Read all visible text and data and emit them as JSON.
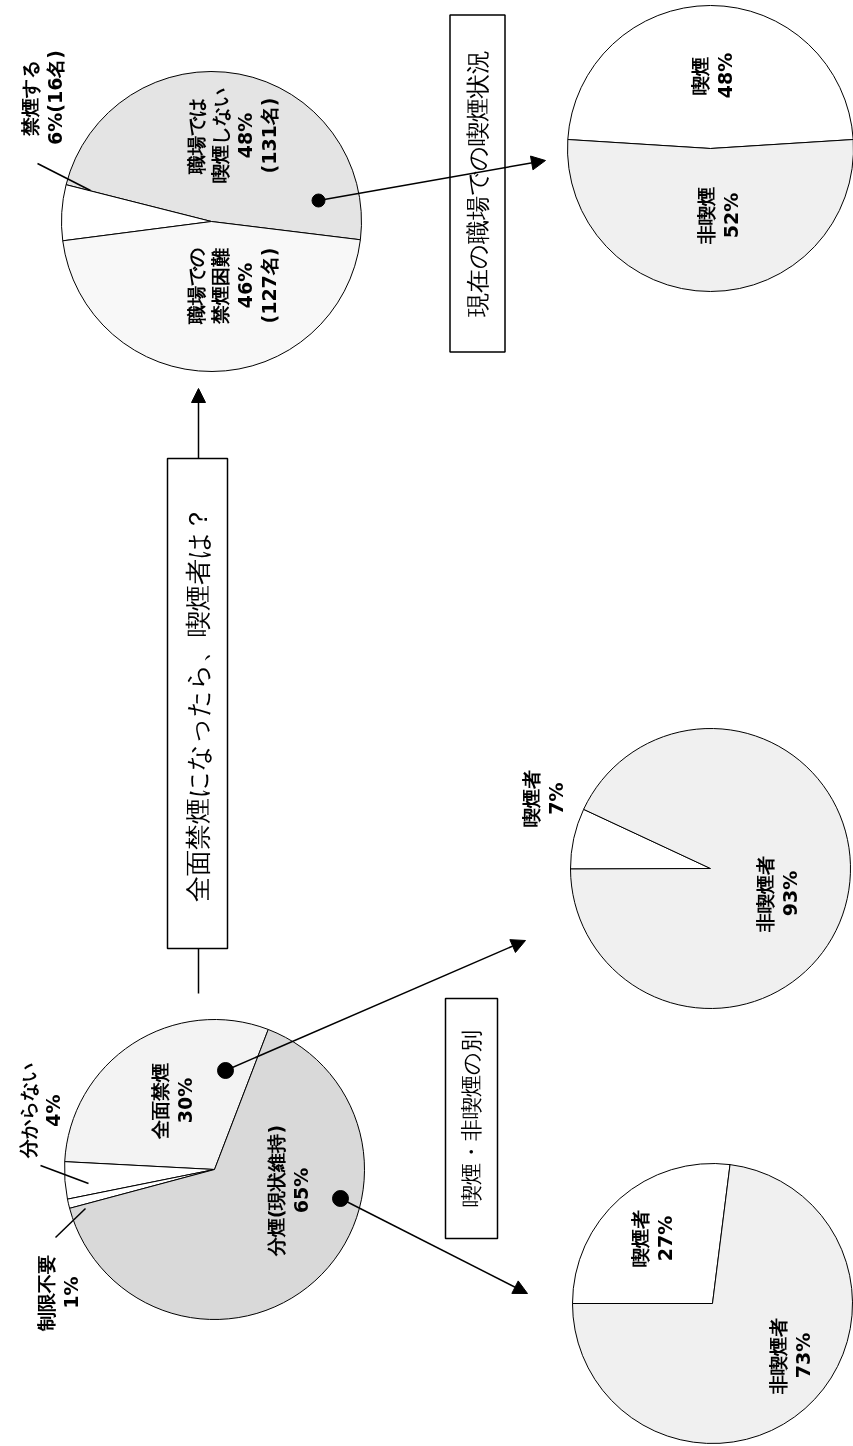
{
  "chart_data": [
    {
      "type": "pie",
      "categories": [
        "全面禁煙",
        "分からない",
        "制限不要",
        "分煙(現状維持)"
      ],
      "values": [
        30,
        4,
        1,
        65
      ],
      "value_labels": [
        "30%",
        "4%",
        "1%",
        "65%"
      ],
      "colors": [
        "#f3f3f3",
        "#ffffff",
        "#ffffff",
        "#d9d9d9"
      ]
    },
    {
      "type": "pie",
      "title": "喫煙・非喫煙の別",
      "categories": [
        "喫煙者",
        "非喫煙者"
      ],
      "values": [
        7,
        93
      ],
      "value_labels": [
        "7%",
        "93%"
      ],
      "colors": [
        "#ffffff",
        "#f0f0f0"
      ]
    },
    {
      "type": "pie",
      "categories": [
        "喫煙者",
        "非喫煙者"
      ],
      "values": [
        27,
        73
      ],
      "value_labels": [
        "27%",
        "73%"
      ],
      "colors": [
        "#ffffff",
        "#f0f0f0"
      ]
    },
    {
      "type": "pie",
      "title": "全面禁煙になったら、喫煙者は？",
      "categories": [
        "職場では喫煙しない",
        "禁煙する",
        "職場での禁煙困難"
      ],
      "values": [
        48,
        6,
        46
      ],
      "value_labels": [
        "48%\n(131名)",
        "6%(16名)",
        "46%\n(127名)"
      ],
      "colors": [
        "#e4e4e4",
        "#ffffff",
        "#f8f8f8"
      ]
    },
    {
      "type": "pie",
      "title": "現在の職場での喫煙状況",
      "categories": [
        "喫煙",
        "非喫煙"
      ],
      "values": [
        48,
        52
      ],
      "value_labels": [
        "48%",
        "52%"
      ],
      "colors": [
        "#ffffff",
        "#f0f0f0"
      ]
    }
  ]
}
